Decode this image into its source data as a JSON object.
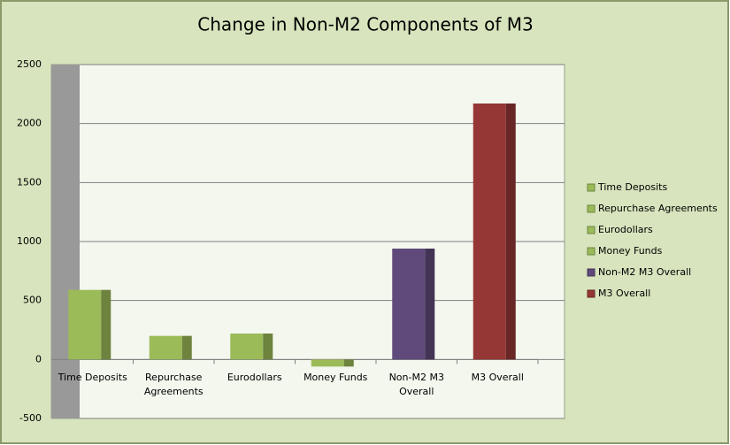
{
  "chart_data": {
    "type": "bar",
    "title": "Change in Non-M2 Components of M3",
    "categories": [
      "Time Deposits",
      "Repurchase Agreements",
      "Eurodollars",
      "Money Funds",
      "Non-M2 M3 Overall",
      "M3 Overall"
    ],
    "values": [
      590,
      200,
      220,
      -60,
      940,
      2170
    ],
    "colors": [
      "#9bbb59",
      "#9bbb59",
      "#9bbb59",
      "#9bbb59",
      "#604a7b",
      "#953735"
    ],
    "ylim": [
      -500,
      2500
    ],
    "yticks": [
      -500,
      0,
      500,
      1000,
      1500,
      2000,
      2500
    ],
    "grid": true,
    "legend": "right"
  }
}
